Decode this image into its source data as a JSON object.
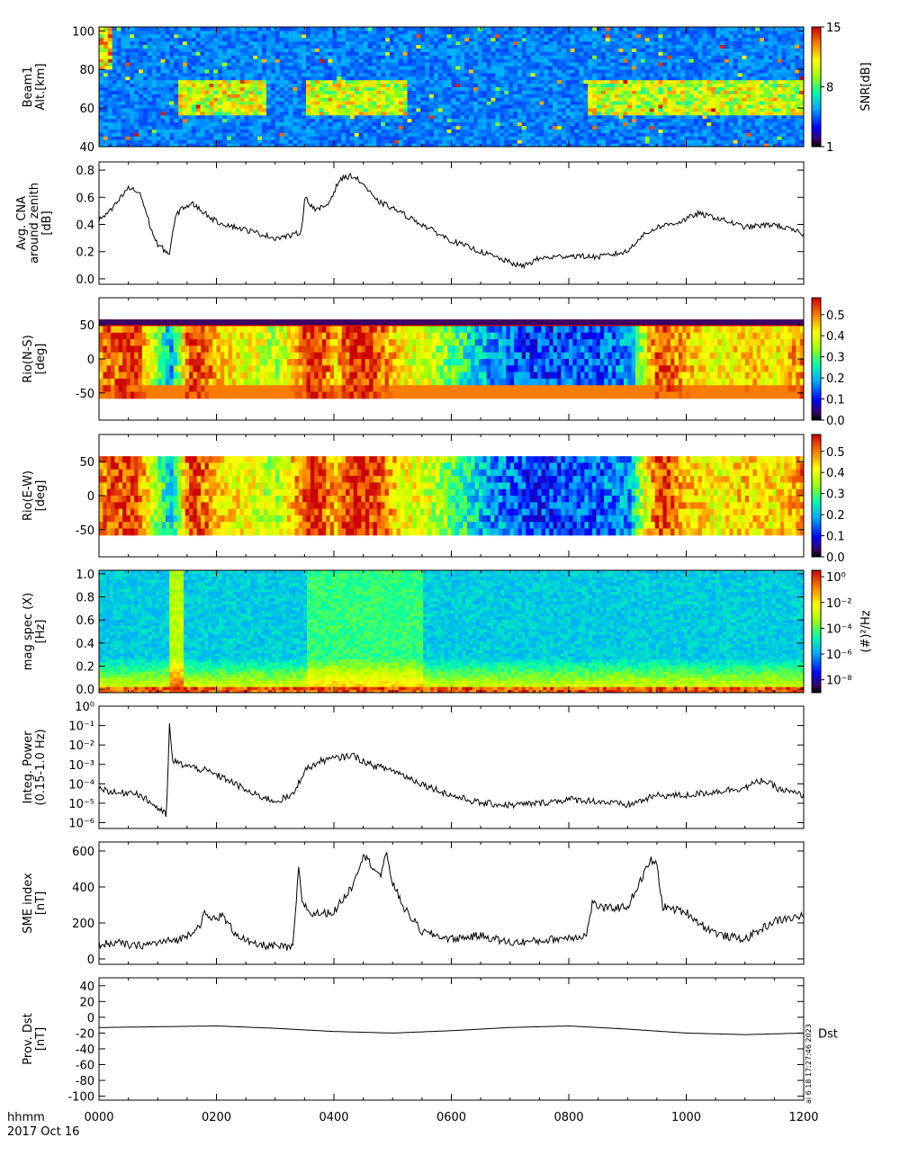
{
  "footer": {
    "time_label": "hhmm",
    "date_label": "2017 Oct 16",
    "x_ticks": [
      "0000",
      "0200",
      "0400",
      "0600",
      "0800",
      "1000",
      "1200"
    ],
    "stamp": "ai 6 18 17:27:46 2023"
  },
  "chart_data": [
    {
      "type": "heatmap",
      "ylabel_lines": [
        "Beam1",
        "Alt.[km]"
      ],
      "y_ticks": [
        "40",
        "60",
        "80",
        "100"
      ],
      "ylim": [
        40,
        102
      ],
      "colorbar": {
        "label": "SNR[dB]",
        "ticks": [
          "1",
          "8",
          "15"
        ],
        "range": [
          1,
          15
        ]
      },
      "x": [
        0,
        0.5,
        1,
        1.5,
        2,
        2.5,
        3,
        3.5,
        4,
        4.5,
        5,
        5.5,
        6,
        6.5,
        7,
        7.5,
        8,
        8.5,
        9,
        9.5,
        10,
        10.5,
        11,
        11.5,
        12
      ]
    },
    {
      "type": "line",
      "ylabel_lines": [
        "Avg. CNA",
        "around zenith",
        "[dB]"
      ],
      "y_ticks": [
        "0.0",
        "0.2",
        "0.4",
        "0.6",
        "0.8"
      ],
      "ylim": [
        -0.04,
        0.86
      ],
      "x": [
        0,
        0.2,
        0.5,
        0.7,
        0.9,
        1.0,
        1.15,
        1.2,
        1.3,
        1.4,
        1.6,
        2.0,
        2.5,
        3.0,
        3.3,
        3.45,
        3.5,
        3.7,
        3.9,
        4.1,
        4.3,
        4.5,
        4.7,
        5.0,
        5.5,
        6.0,
        6.5,
        7.0,
        7.2,
        7.5,
        8.0,
        8.5,
        9.0,
        9.2,
        9.5,
        9.9,
        10.2,
        10.5,
        11.0,
        11.5,
        12.0
      ],
      "y": [
        0.43,
        0.5,
        0.67,
        0.63,
        0.35,
        0.25,
        0.2,
        0.18,
        0.45,
        0.52,
        0.55,
        0.42,
        0.36,
        0.3,
        0.32,
        0.35,
        0.6,
        0.5,
        0.55,
        0.73,
        0.76,
        0.7,
        0.58,
        0.52,
        0.4,
        0.28,
        0.2,
        0.12,
        0.09,
        0.15,
        0.17,
        0.16,
        0.2,
        0.3,
        0.38,
        0.42,
        0.48,
        0.45,
        0.38,
        0.4,
        0.33
      ]
    },
    {
      "type": "heatmap",
      "ylabel_lines": [
        "Rio(N-S)",
        "[deg]"
      ],
      "y_ticks": [
        "-50",
        "0",
        "50"
      ],
      "ylim": [
        -90,
        90
      ],
      "colorbar": {
        "label": "",
        "ticks": [
          "0.0",
          "0.1",
          "0.2",
          "0.3",
          "0.4",
          "0.5"
        ],
        "range": [
          0,
          0.58
        ]
      },
      "x": [
        0,
        0.6,
        0.9,
        1.2,
        1.5,
        1.8,
        2.2,
        2.6,
        3.0,
        3.4,
        3.6,
        4.0,
        4.3,
        4.8,
        5.2,
        5.6,
        6.0,
        6.5,
        7.0,
        7.5,
        8.0,
        8.5,
        9.0,
        9.2,
        9.5,
        10.0,
        10.5,
        11.0,
        11.5,
        12.0
      ],
      "values": [
        0.5,
        0.55,
        0.35,
        0.2,
        0.55,
        0.5,
        0.42,
        0.4,
        0.35,
        0.5,
        0.58,
        0.45,
        0.58,
        0.5,
        0.4,
        0.38,
        0.3,
        0.2,
        0.15,
        0.12,
        0.14,
        0.15,
        0.18,
        0.35,
        0.55,
        0.45,
        0.4,
        0.45,
        0.42,
        0.5
      ]
    },
    {
      "type": "heatmap",
      "ylabel_lines": [
        "Rio(E-W)",
        "[deg]"
      ],
      "y_ticks": [
        "-50",
        "0",
        "50"
      ],
      "ylim": [
        -90,
        90
      ],
      "colorbar": {
        "label": "",
        "ticks": [
          "0.0",
          "0.1",
          "0.2",
          "0.3",
          "0.4",
          "0.5"
        ],
        "range": [
          0,
          0.58
        ]
      },
      "x": [
        0,
        0.6,
        0.9,
        1.2,
        1.5,
        1.8,
        2.2,
        2.6,
        3.0,
        3.4,
        3.6,
        4.0,
        4.3,
        4.8,
        5.2,
        5.6,
        6.0,
        6.5,
        7.0,
        7.5,
        8.0,
        8.5,
        9.0,
        9.2,
        9.5,
        10.0,
        10.5,
        11.0,
        11.5,
        12.0
      ],
      "values": [
        0.5,
        0.55,
        0.35,
        0.2,
        0.55,
        0.5,
        0.42,
        0.4,
        0.35,
        0.5,
        0.58,
        0.45,
        0.58,
        0.5,
        0.4,
        0.38,
        0.3,
        0.2,
        0.15,
        0.12,
        0.14,
        0.15,
        0.18,
        0.35,
        0.55,
        0.45,
        0.4,
        0.45,
        0.42,
        0.5
      ]
    },
    {
      "type": "heatmap",
      "ylabel_lines": [
        "mag spec (X)",
        "[Hz]"
      ],
      "y_ticks": [
        "0.0",
        "0.2",
        "0.4",
        "0.6",
        "0.8",
        "1.0"
      ],
      "ylim": [
        -0.03,
        1.03
      ],
      "colorbar": {
        "label": "(#)²/Hz",
        "ticks": [
          "10⁰",
          "10⁻²",
          "10⁻⁴",
          "10⁻⁶",
          "10⁻⁸"
        ],
        "log_range": [
          -9,
          0.5
        ]
      }
    },
    {
      "type": "line",
      "log_scale": true,
      "ylabel_lines": [
        "Integ. Power",
        "(0.15-1.0 Hz)"
      ],
      "y_ticks": [
        "10⁰",
        "10⁻¹",
        "10⁻²",
        "10⁻³",
        "10⁻⁴",
        "10⁻⁵",
        "10⁻⁶"
      ],
      "ylim_log10": [
        -6.3,
        0
      ],
      "x": [
        0,
        0.3,
        0.6,
        0.9,
        1.1,
        1.15,
        1.2,
        1.25,
        1.4,
        1.8,
        2.2,
        2.6,
        3.0,
        3.3,
        3.5,
        3.8,
        4.2,
        4.3,
        4.6,
        5.0,
        5.5,
        6.0,
        6.5,
        7.0,
        7.5,
        8.0,
        8.5,
        9.0,
        9.5,
        10.0,
        10.5,
        11.0,
        11.3,
        11.6,
        12.0
      ],
      "y_log10": [
        -4.2,
        -4.5,
        -4.4,
        -5.0,
        -5.5,
        -5.6,
        -1.0,
        -2.8,
        -3.0,
        -3.3,
        -3.8,
        -4.5,
        -4.9,
        -4.6,
        -3.3,
        -2.8,
        -2.6,
        -2.5,
        -3.0,
        -3.3,
        -4.0,
        -4.6,
        -5.0,
        -5.1,
        -5.0,
        -4.8,
        -4.9,
        -5.1,
        -4.6,
        -4.6,
        -4.4,
        -4.2,
        -3.8,
        -4.3,
        -4.6
      ]
    },
    {
      "type": "line",
      "ylabel_lines": [
        "SME index",
        "[nT]"
      ],
      "y_ticks": [
        "0",
        "200",
        "400",
        "600"
      ],
      "ylim": [
        -30,
        650
      ],
      "x": [
        0,
        0.3,
        0.6,
        1.0,
        1.4,
        1.7,
        1.8,
        1.9,
        2.1,
        2.3,
        2.6,
        3.0,
        3.3,
        3.4,
        3.45,
        3.6,
        4.0,
        4.3,
        4.5,
        4.8,
        4.9,
        5.0,
        5.2,
        5.5,
        6.0,
        6.5,
        7.0,
        7.5,
        8.0,
        8.3,
        8.4,
        8.6,
        9.0,
        9.4,
        9.5,
        9.6,
        10.0,
        10.3,
        10.6,
        11.0,
        11.5,
        12.0
      ],
      "y": [
        80,
        90,
        70,
        90,
        110,
        180,
        250,
        220,
        240,
        150,
        80,
        70,
        60,
        500,
        330,
        250,
        260,
        400,
        580,
        460,
        590,
        420,
        280,
        150,
        110,
        130,
        90,
        100,
        120,
        130,
        310,
        280,
        290,
        550,
        520,
        290,
        260,
        180,
        130,
        110,
        210,
        240
      ]
    },
    {
      "type": "line",
      "ylabel_lines": [
        "Prov. Dst",
        "[nT]"
      ],
      "y_ticks": [
        "-100",
        "-80",
        "-60",
        "-40",
        "-20",
        "0",
        "20",
        "40"
      ],
      "ylim": [
        -105,
        50
      ],
      "series_label": "Dst",
      "x": [
        0,
        1,
        2,
        3,
        4,
        5,
        6,
        7,
        8,
        9,
        10,
        11,
        12
      ],
      "y": [
        -13,
        -12,
        -11,
        -14,
        -18,
        -20,
        -17,
        -13,
        -11,
        -15,
        -20,
        -22,
        -20
      ]
    }
  ]
}
